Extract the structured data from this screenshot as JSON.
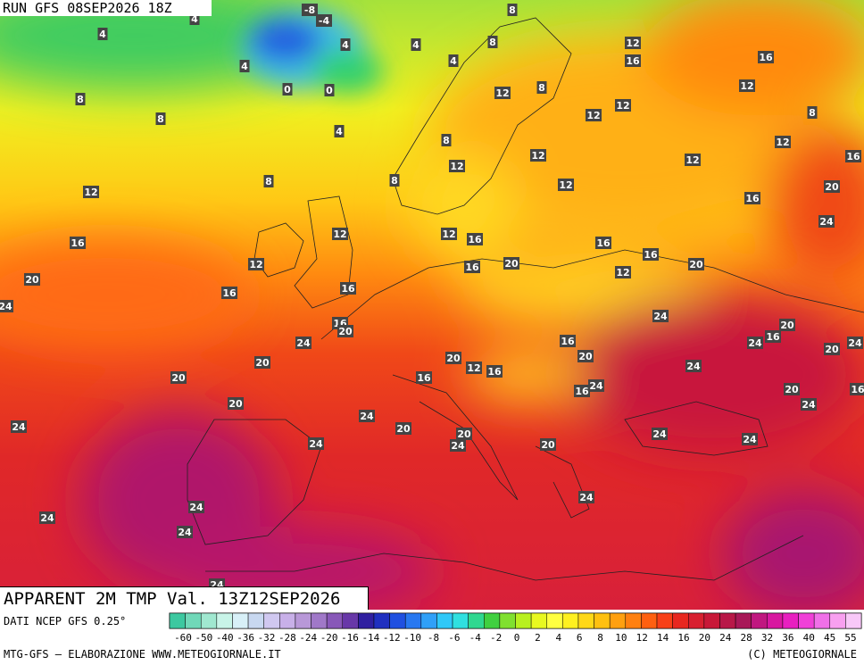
{
  "run": "RUN GFS 08SEP2026 18Z",
  "title": "APPARENT 2M TMP Val. 13Z12SEP2026",
  "source": "DATI NCEP GFS 0.25°",
  "credit": "MTG-GFS — ELABORAZIONE WWW.METEOGIORNALE.IT",
  "copyright": "(C) METEOGIORNALE",
  "map_labels": [
    -8,
    -4,
    4,
    4,
    8,
    8,
    4,
    4,
    4,
    4,
    0,
    0,
    12,
    16,
    16,
    12,
    8,
    8,
    12,
    8,
    12,
    12,
    8,
    4,
    8,
    12,
    16,
    12,
    12,
    12,
    12,
    8,
    8,
    12,
    16,
    20,
    24,
    12,
    12,
    16,
    16,
    12,
    16,
    16,
    20,
    16,
    12,
    20,
    20,
    16,
    16,
    24,
    24,
    16,
    20,
    24,
    20,
    24,
    16,
    20,
    24,
    16,
    20,
    20,
    20,
    20,
    12,
    16,
    16,
    24,
    16,
    24,
    20,
    16,
    24,
    20,
    24,
    24,
    20,
    20,
    24,
    24,
    24,
    24,
    20,
    24,
    24,
    24,
    24,
    24
  ],
  "colorbar": {
    "ticks": [
      -60,
      -50,
      -40,
      -36,
      -32,
      -28,
      -24,
      -20,
      -16,
      -14,
      -12,
      -10,
      -8,
      -6,
      -4,
      -2,
      0,
      2,
      4,
      6,
      8,
      10,
      12,
      14,
      16,
      20,
      24,
      28,
      32,
      36,
      40,
      45,
      55
    ],
    "colors": [
      "#3cc8a0",
      "#70d8b8",
      "#a0e8d0",
      "#c8f4e8",
      "#d8f0f8",
      "#c8d8f0",
      "#d0c8f0",
      "#c8b0e8",
      "#b898d8",
      "#a078c8",
      "#8858b8",
      "#6838a8",
      "#3020a0",
      "#2030c0",
      "#2050e0",
      "#2878f0",
      "#30a0f8",
      "#30c8f8",
      "#30e0e0",
      "#30d890",
      "#40d040",
      "#80e030",
      "#b8f020",
      "#e8f820",
      "#ffff40",
      "#fff020",
      "#ffd818",
      "#ffc010",
      "#ffa010",
      "#ff8010",
      "#ff6010",
      "#f84018",
      "#e82820",
      "#d82030",
      "#c81838",
      "#b81848",
      "#a81858",
      "#c01880",
      "#d818a0",
      "#e820c0",
      "#f040d8",
      "#f070e8",
      "#f8a0f0",
      "#f8c8f8"
    ]
  }
}
